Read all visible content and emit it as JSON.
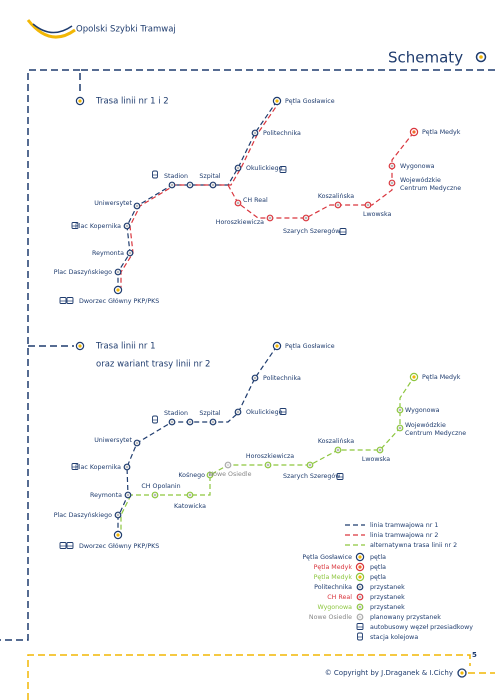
{
  "header": {
    "brand": "Opolski Szybki Tramwaj",
    "section": "Schematy"
  },
  "diagrams": [
    {
      "title": [
        "Trasa linii nr 1 i 2"
      ],
      "stops": [
        "Pętla Gosławice",
        "Politechnika",
        "Okulickiego",
        "Szpital",
        "Stadion",
        "Uniwersytet",
        "Plac Kopernika",
        "Reymonta",
        "Plac Daszyńskiego",
        "Dworzec Główny PKP/PKS",
        "CH Real",
        "Horoszkiewicza",
        "Szarych Szeregów",
        "Koszalińska",
        "Lwowska",
        [
          "Wojewódzkie",
          "Centrum Medyczne"
        ],
        "Wygonowa",
        "Pętla Medyk"
      ]
    },
    {
      "title": [
        "Trasa linii nr 1",
        "oraz wariant trasy linii nr 2"
      ],
      "stops": [
        "Pętla Gosławice",
        "Politechnika",
        "Okulickiego",
        "Szpital",
        "Stadion",
        "Uniwersytet",
        "Plac Kopernika",
        "Reymonta",
        "Plac Daszyńskiego",
        "Dworzec Główny PKP/PKS",
        "CH Opolanin",
        "Katowicka",
        "Kośnego",
        "Nowe Osiedle",
        "Horoszkiewicza",
        "Szarych Szeregów",
        "Koszalińska",
        "Lwowska",
        [
          "Wojewódzkie",
          "Centrum Medyczne"
        ],
        "Wygonowa",
        "Pętla Medyk"
      ]
    }
  ],
  "legend": {
    "lines": [
      "linia tramwajowa nr 1",
      "linia tramwajowa nr 2",
      "alternatywna trasa linii nr 2"
    ],
    "symbols": [
      {
        "stop": "Pętla Gosławice",
        "desc": "pętla"
      },
      {
        "stop": "Pętla Medyk",
        "desc": "pętla"
      },
      {
        "stop": "Pętla Medyk",
        "desc": "pętla"
      },
      {
        "stop": "Politechnika",
        "desc": "przystanek"
      },
      {
        "stop": "CH Real",
        "desc": "przystanek"
      },
      {
        "stop": "Wygonowa",
        "desc": "przystanek"
      },
      {
        "stop": "Nowe Osiedle",
        "desc": "planowany przystanek"
      }
    ],
    "icons": [
      "autobusowy węzeł przesiadkowy",
      "stacja kolejowa"
    ]
  },
  "footer": {
    "page": "5",
    "copyright": "© Copyright by J.Draganek & I.Cichy"
  }
}
